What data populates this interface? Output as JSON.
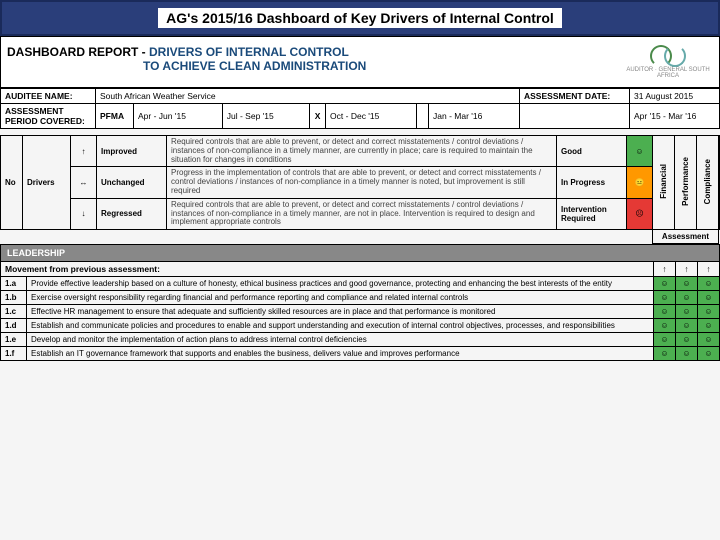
{
  "title": "AG's 2015/16 Dashboard of Key Drivers of Internal Control",
  "report_label": "DASHBOARD REPORT -",
  "report_title_l1": "DRIVERS OF INTERNAL CONTROL",
  "report_title_l2": "TO ACHIEVE CLEAN ADMINISTRATION",
  "logo_text": "AUDITOR · GENERAL SOUTH AFRICA",
  "auditee_label": "AUDITEE NAME:",
  "auditee_value": "South African Weather Service",
  "assess_date_label": "ASSESSMENT DATE:",
  "assess_date_value": "31 August 2015",
  "period_label": "ASSESSMENT PERIOD COVERED:",
  "pfma": "PFMA",
  "periods": [
    "Apr - Jun '15",
    "Jul - Sep '15",
    "Oct - Dec '15",
    "Jan - Mar '16",
    "Apr '15 - Mar '16"
  ],
  "period_marks": [
    "",
    "X",
    "",
    "",
    ""
  ],
  "legend": {
    "no": "No",
    "drivers": "Drivers",
    "rows": [
      {
        "arrow": "↑",
        "word": "Improved",
        "desc": "Required controls that are able to prevent, or detect and correct misstatements / control deviations / instances of non-compliance in a timely manner, are currently in place; care is required to maintain the situation for changes in conditions",
        "status": "Good",
        "face": "☺",
        "cls": "good"
      },
      {
        "arrow": "↔",
        "word": "Unchanged",
        "desc": "Progress in the implementation of controls that are able to prevent, or detect and correct misstatements / control deviations / instances of non-compliance in a timely manner is noted, but improvement is still required",
        "status": "In Progress",
        "face": "😐",
        "cls": "prog"
      },
      {
        "arrow": "↓",
        "word": "Regressed",
        "desc": "Required controls that are able to prevent, or detect and correct misstatements / control deviations / instances of non-compliance in a timely manner, are not in place. Intervention is required to design and implement appropriate controls",
        "status": "Intervention Required",
        "face": "☹",
        "cls": "bad"
      }
    ],
    "assessment": "Assessment",
    "cols": [
      "Financial",
      "Performance",
      "Compliance"
    ]
  },
  "section": "LEADERSHIP",
  "movement_label": "Movement from previous assessment:",
  "movement": [
    "↑",
    "↑",
    "↑"
  ],
  "items": [
    {
      "n": "1.a",
      "t": "Provide effective leadership based on a culture of honesty, ethical business practices and good governance, protecting and enhancing the best interests of the entity",
      "a": [
        "good",
        "good",
        "good"
      ]
    },
    {
      "n": "1.b",
      "t": "Exercise oversight responsibility regarding financial and performance reporting and compliance and related internal controls",
      "a": [
        "good",
        "good",
        "good"
      ]
    },
    {
      "n": "1.c",
      "t": "Effective HR management to ensure that adequate and sufficiently skilled resources are in place and that performance is monitored",
      "a": [
        "good",
        "good",
        "good"
      ]
    },
    {
      "n": "1.d",
      "t": "Establish and communicate policies and procedures to enable and support understanding and execution of internal control objectives, processes, and responsibilities",
      "a": [
        "good",
        "good",
        "good"
      ]
    },
    {
      "n": "1.e",
      "t": "Develop and monitor the implementation of action plans to address internal control deficiencies",
      "a": [
        "good",
        "good",
        "good"
      ]
    },
    {
      "n": "1.f",
      "t": "Establish an IT governance framework that supports and enables the business, delivers value and improves performance",
      "a": [
        "good",
        "good",
        "good"
      ]
    }
  ],
  "colors": {
    "good": "#4caf50",
    "prog": "#ff9800",
    "bad": "#e53935",
    "title_bar": "#2a3e7a"
  }
}
